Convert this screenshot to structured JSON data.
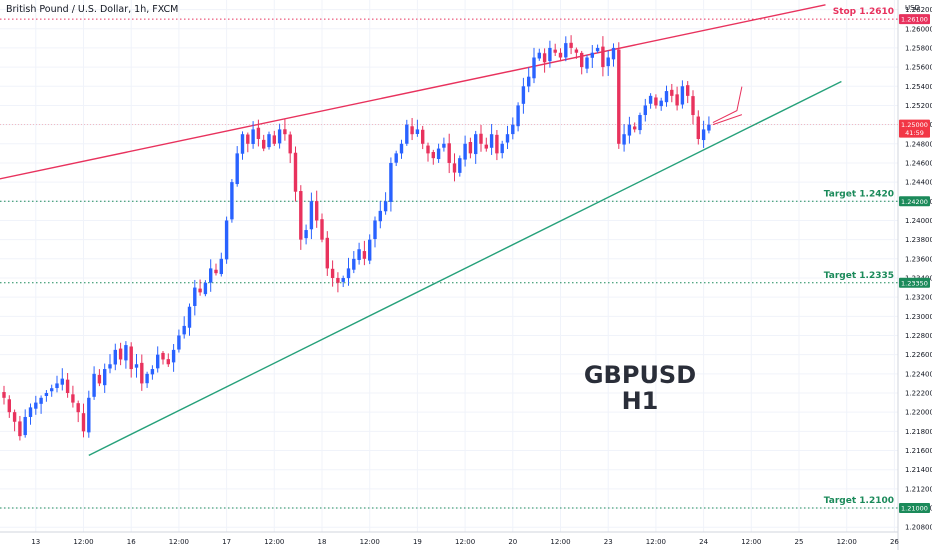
{
  "header": {
    "title": "British Pound / U.S. Dollar, 1h, FXCM"
  },
  "watermark": {
    "line1": "GBPUSD",
    "line2": "H1"
  },
  "axis": {
    "unit": "USD"
  },
  "chart_data": {
    "type": "candlestick",
    "symbol": "GBPUSD",
    "timeframe": "1h",
    "ylim": [
      1.2075,
      1.263
    ],
    "y_ticks": [
      1.262,
      1.26,
      1.258,
      1.256,
      1.254,
      1.252,
      1.25,
      1.248,
      1.246,
      1.244,
      1.242,
      1.24,
      1.238,
      1.236,
      1.234,
      1.232,
      1.23,
      1.228,
      1.226,
      1.224,
      1.222,
      1.22,
      1.218,
      1.216,
      1.214,
      1.212,
      1.21,
      1.208
    ],
    "y_tick_labels": [
      "1.26200",
      "1.26000",
      "1.25800",
      "1.25600",
      "1.25400",
      "1.25200",
      "1.25000",
      "1.24800",
      "1.24600",
      "1.24400",
      "1.24200",
      "1.24000",
      "1.23800",
      "1.23600",
      "1.23400",
      "1.23200",
      "1.23000",
      "1.22800",
      "1.22600",
      "1.22400",
      "1.22200",
      "1.22000",
      "1.21800",
      "1.21600",
      "1.21400",
      "1.21200",
      "1.21000",
      "1.20800"
    ],
    "x_ticks": [
      {
        "label": "13",
        "i": 6
      },
      {
        "label": "12:00",
        "i": 15
      },
      {
        "label": "16",
        "i": 24
      },
      {
        "label": "12:00",
        "i": 33
      },
      {
        "label": "17",
        "i": 42
      },
      {
        "label": "12:00",
        "i": 51
      },
      {
        "label": "18",
        "i": 60
      },
      {
        "label": "12:00",
        "i": 69
      },
      {
        "label": "19",
        "i": 78
      },
      {
        "label": "12:00",
        "i": 87
      },
      {
        "label": "20",
        "i": 96
      },
      {
        "label": "12:00",
        "i": 105
      },
      {
        "label": "23",
        "i": 114
      },
      {
        "label": "12:00",
        "i": 123
      },
      {
        "label": "24",
        "i": 132
      },
      {
        "label": "12:00",
        "i": 141
      },
      {
        "label": "25",
        "i": 150
      },
      {
        "label": "12:00",
        "i": 159
      },
      {
        "label": "26",
        "i": 168
      }
    ],
    "closes": [
      1.2215,
      1.22,
      1.219,
      1.2175,
      1.2195,
      1.2205,
      1.221,
      1.2215,
      1.222,
      1.2225,
      1.223,
      1.2235,
      1.222,
      1.221,
      1.22,
      1.218,
      1.2215,
      1.224,
      1.223,
      1.2245,
      1.225,
      1.2265,
      1.2255,
      1.227,
      1.2245,
      1.225,
      1.223,
      1.224,
      1.2245,
      1.226,
      1.2255,
      1.225,
      1.2265,
      1.228,
      1.229,
      1.231,
      1.233,
      1.2325,
      1.2335,
      1.235,
      1.2345,
      1.236,
      1.24,
      1.244,
      1.247,
      1.249,
      1.248,
      1.2495,
      1.2485,
      1.2475,
      1.249,
      1.248,
      1.2495,
      1.249,
      1.247,
      1.243,
      1.238,
      1.239,
      1.242,
      1.24,
      1.238,
      1.235,
      1.234,
      1.2335,
      1.234,
      1.235,
      1.236,
      1.237,
      1.236,
      1.238,
      1.24,
      1.241,
      1.242,
      1.246,
      1.247,
      1.248,
      1.25,
      1.249,
      1.2495,
      1.248,
      1.247,
      1.2465,
      1.2475,
      1.248,
      1.246,
      1.245,
      1.2465,
      1.248,
      1.247,
      1.249,
      1.248,
      1.2475,
      1.249,
      1.247,
      1.248,
      1.249,
      1.25,
      1.252,
      1.254,
      1.255,
      1.257,
      1.2575,
      1.2565,
      1.258,
      1.2575,
      1.257,
      1.2585,
      1.258,
      1.2575,
      1.256,
      1.257,
      1.2575,
      1.258,
      1.256,
      1.257,
      1.258,
      1.248,
      1.249,
      1.25,
      1.2495,
      1.251,
      1.252,
      1.253,
      1.252,
      1.2525,
      1.2535,
      1.253,
      1.252,
      1.254,
      1.253,
      1.251,
      1.2485,
      1.2495,
      1.25
    ],
    "levels": [
      {
        "label": "Stop 1.2610",
        "value": 1.261,
        "axis_label": "1.26100",
        "color": "#e8325d"
      },
      {
        "label": "Target 1.2420",
        "value": 1.242,
        "axis_label": "1.24200",
        "color": "#1b8a5a"
      },
      {
        "label": "Target 1.2335",
        "value": 1.2335,
        "axis_label": "1.23350",
        "color": "#1b8a5a"
      },
      {
        "label": "Target 1.2100",
        "value": 1.21,
        "axis_label": "1.21000",
        "color": "#1b8a5a"
      }
    ],
    "last_price": {
      "value": 1.25,
      "label": "1.25000",
      "countdown": "41:59",
      "color": "#f23645"
    },
    "trendlines": [
      {
        "role": "resistance",
        "color": "#e8325d",
        "from": {
          "i": -20,
          "price": 1.2421
        },
        "to": {
          "i": 155,
          "price": 1.2625
        }
      },
      {
        "role": "support",
        "color": "#26a17a",
        "from": {
          "i": 16,
          "price": 1.2155
        },
        "to": {
          "i": 158,
          "price": 1.2545
        }
      }
    ],
    "colors": {
      "up": "#2962ff",
      "down": "#e8325d",
      "grid": "#f0f3fa"
    }
  }
}
